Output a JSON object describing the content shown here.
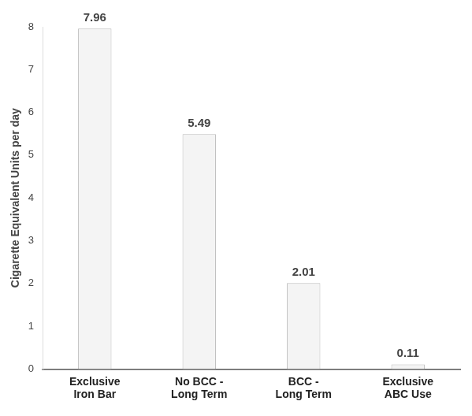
{
  "chart_data": {
    "type": "bar",
    "y_label": "Cigarette Equivalent Units per day",
    "categories": [
      "Exclusive Iron Bar",
      "No BCC - Long Term",
      "BCC - Long Term",
      "Exclusive ABC Use"
    ],
    "values": [
      7.96,
      5.49,
      2.01,
      0.11
    ],
    "color": "#f4f4f4",
    "ylim": [
      0,
      8
    ],
    "yticks": [
      0,
      1,
      2,
      3,
      4,
      5,
      6,
      7,
      8
    ],
    "grid": false,
    "data_labels": true
  }
}
